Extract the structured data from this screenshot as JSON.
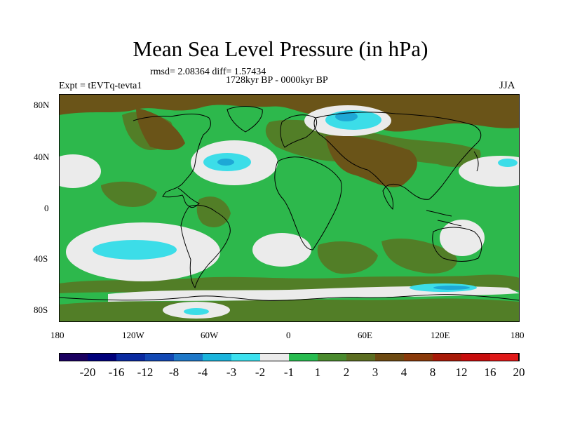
{
  "title": "Mean Sea Level Pressure (in hPa)",
  "stats_text": "rmsd= 2.08364 diff= 1.57434",
  "experiment": "Expt = tEVTq-tevta1",
  "period": "1728kyr BP - 0000kyr BP",
  "season": "JJA",
  "lat_ticks": [
    "80N",
    "40N",
    "0",
    "40S",
    "80S"
  ],
  "lon_ticks": [
    "180",
    "120W",
    "60W",
    "0",
    "60E",
    "120E",
    "180"
  ],
  "colorbar": {
    "colors": [
      "#1a0060",
      "#00007a",
      "#0a2aa0",
      "#1248b4",
      "#1e78c8",
      "#1ab4dc",
      "#3ce1ef",
      "#ebebeb",
      "#28bc50",
      "#4a8a2e",
      "#5c6e22",
      "#6e4a12",
      "#8a3a0a",
      "#a81a08",
      "#c80c0c",
      "#e01818"
    ],
    "labels": [
      "-20",
      "-16",
      "-12",
      "-8",
      "-4",
      "-3",
      "-2",
      "-1",
      "1",
      "2",
      "3",
      "4",
      "8",
      "12",
      "16",
      "20"
    ]
  },
  "colors": {
    "green": "#2db84c",
    "olive": "#527e27",
    "brown": "#6a5418",
    "white": "#ebebeb",
    "cyan": "#3cdde8",
    "blue": "#1ea8d6"
  }
}
